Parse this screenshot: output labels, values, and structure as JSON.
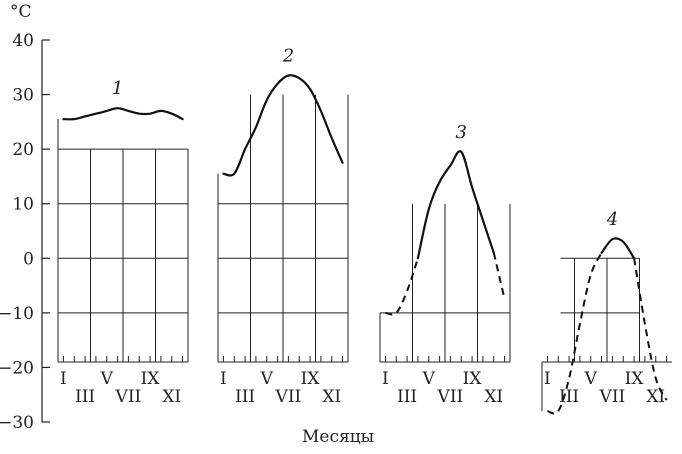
{
  "chart_data": {
    "type": "line",
    "title": "",
    "xlabel": "Месяцы",
    "ylabel": "°C",
    "ylim": [
      -30,
      40
    ],
    "y_ticks": [
      "40",
      "30",
      "20",
      "10",
      "0",
      "−10",
      "−20",
      "−30"
    ],
    "month_labels_top": [
      "I",
      "V",
      "IX"
    ],
    "month_labels_bottom": [
      "III",
      "VII",
      "XI"
    ],
    "series": [
      {
        "name": "1",
        "x": [
          1,
          2,
          3,
          4,
          5,
          6,
          7,
          8,
          9,
          10,
          11,
          12
        ],
        "values": [
          25.5,
          25.5,
          26,
          26.5,
          27,
          27.5,
          27,
          26.5,
          26.5,
          27,
          26.5,
          25.5
        ],
        "dashed_before": 1,
        "dashed_after": 12
      },
      {
        "name": "2",
        "x": [
          1,
          2,
          3,
          4,
          5,
          6,
          7,
          8,
          9,
          10,
          11,
          12
        ],
        "values": [
          15.5,
          15.5,
          20,
          24,
          29,
          32,
          33.5,
          33,
          31,
          27,
          22,
          17.5
        ],
        "dashed_before": 1,
        "dashed_after": 12
      },
      {
        "name": "3",
        "x": [
          1,
          2,
          3,
          4,
          5,
          6,
          7,
          8,
          9,
          10,
          11,
          12
        ],
        "values": [
          -10,
          -10,
          -6,
          0,
          9,
          14,
          17,
          19.5,
          13,
          7,
          1,
          -7.5
        ],
        "dashed_before": 4,
        "dashed_after": 11
      },
      {
        "name": "4",
        "x": [
          1,
          2,
          3,
          4,
          5,
          6,
          7,
          8,
          9,
          10,
          11,
          12
        ],
        "values": [
          -28,
          -28,
          -22,
          -12,
          -3,
          1,
          3.5,
          3,
          0,
          -12,
          -22,
          -26
        ],
        "dashed_before": 6,
        "dashed_after": 9
      }
    ]
  }
}
